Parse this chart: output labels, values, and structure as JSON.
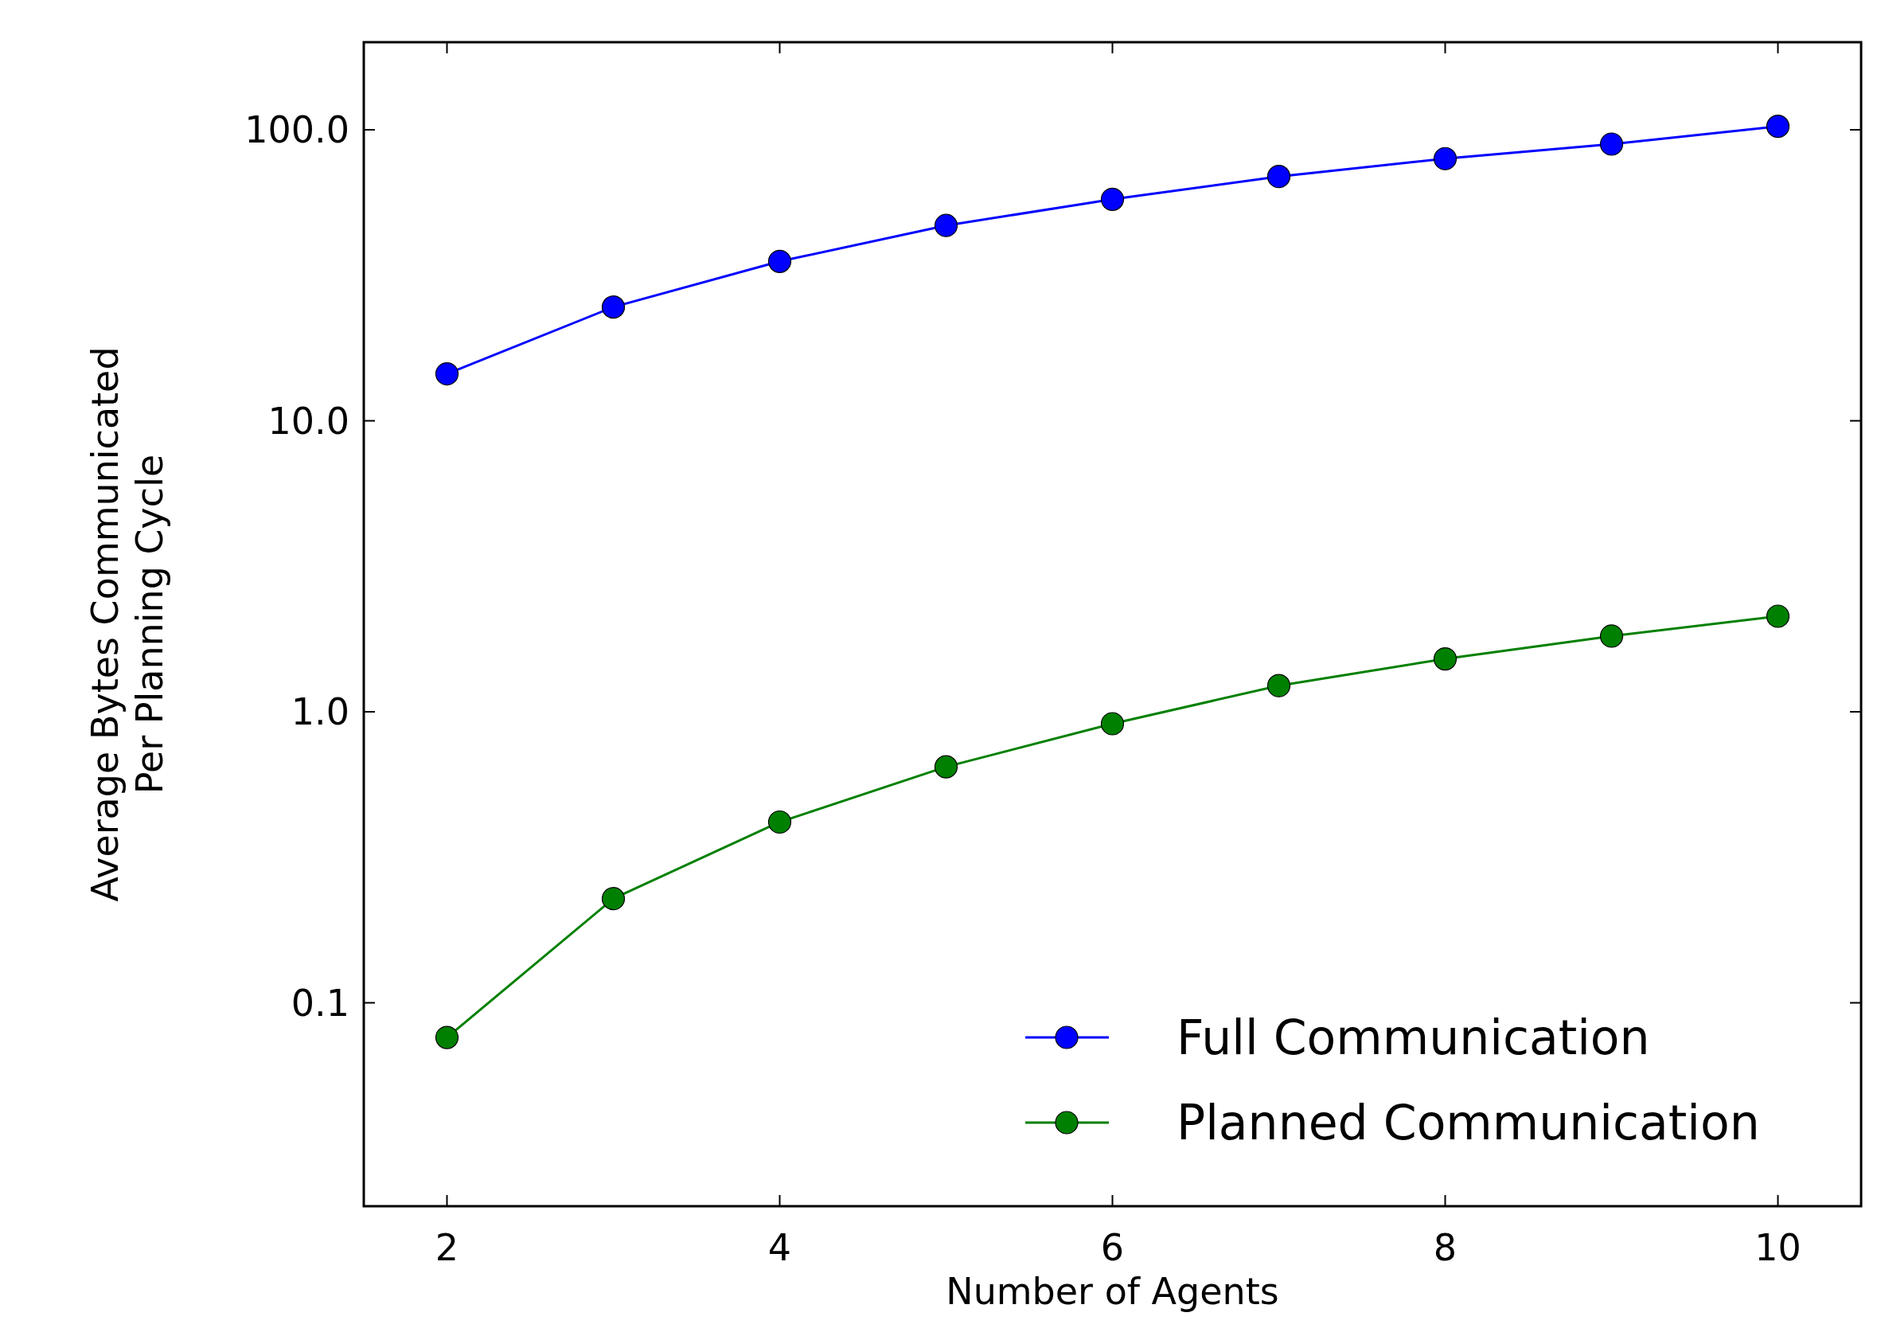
{
  "chart_data": {
    "type": "line",
    "xlabel": "Number of Agents",
    "ylabel": "Average Bytes Communicated\nPer Planning Cycle",
    "x": [
      2,
      3,
      4,
      5,
      6,
      7,
      8,
      9,
      10
    ],
    "series": [
      {
        "name": "Full Communication",
        "color": "#0000ff",
        "values": [
          14.5,
          24.6,
          35.3,
          46.9,
          57.7,
          69.1,
          79.6,
          89.3,
          102.8
        ]
      },
      {
        "name": "Planned Communication",
        "color": "#008000",
        "values": [
          0.076,
          0.228,
          0.418,
          0.647,
          0.91,
          1.23,
          1.52,
          1.82,
          2.13
        ]
      }
    ],
    "xlim": [
      1.5,
      10.5
    ],
    "ylim": [
      0.02,
      200
    ],
    "xticks": [
      2,
      4,
      6,
      8,
      10
    ],
    "yticks": [
      {
        "value": 0.1,
        "label": "0.1"
      },
      {
        "value": 1,
        "label": "1.0"
      },
      {
        "value": 10,
        "label": "10.0"
      },
      {
        "value": 100,
        "label": "100.0"
      }
    ],
    "log": "y",
    "marker": "circle",
    "line_style": "solid",
    "legend": "bottom right",
    "grid": false
  }
}
